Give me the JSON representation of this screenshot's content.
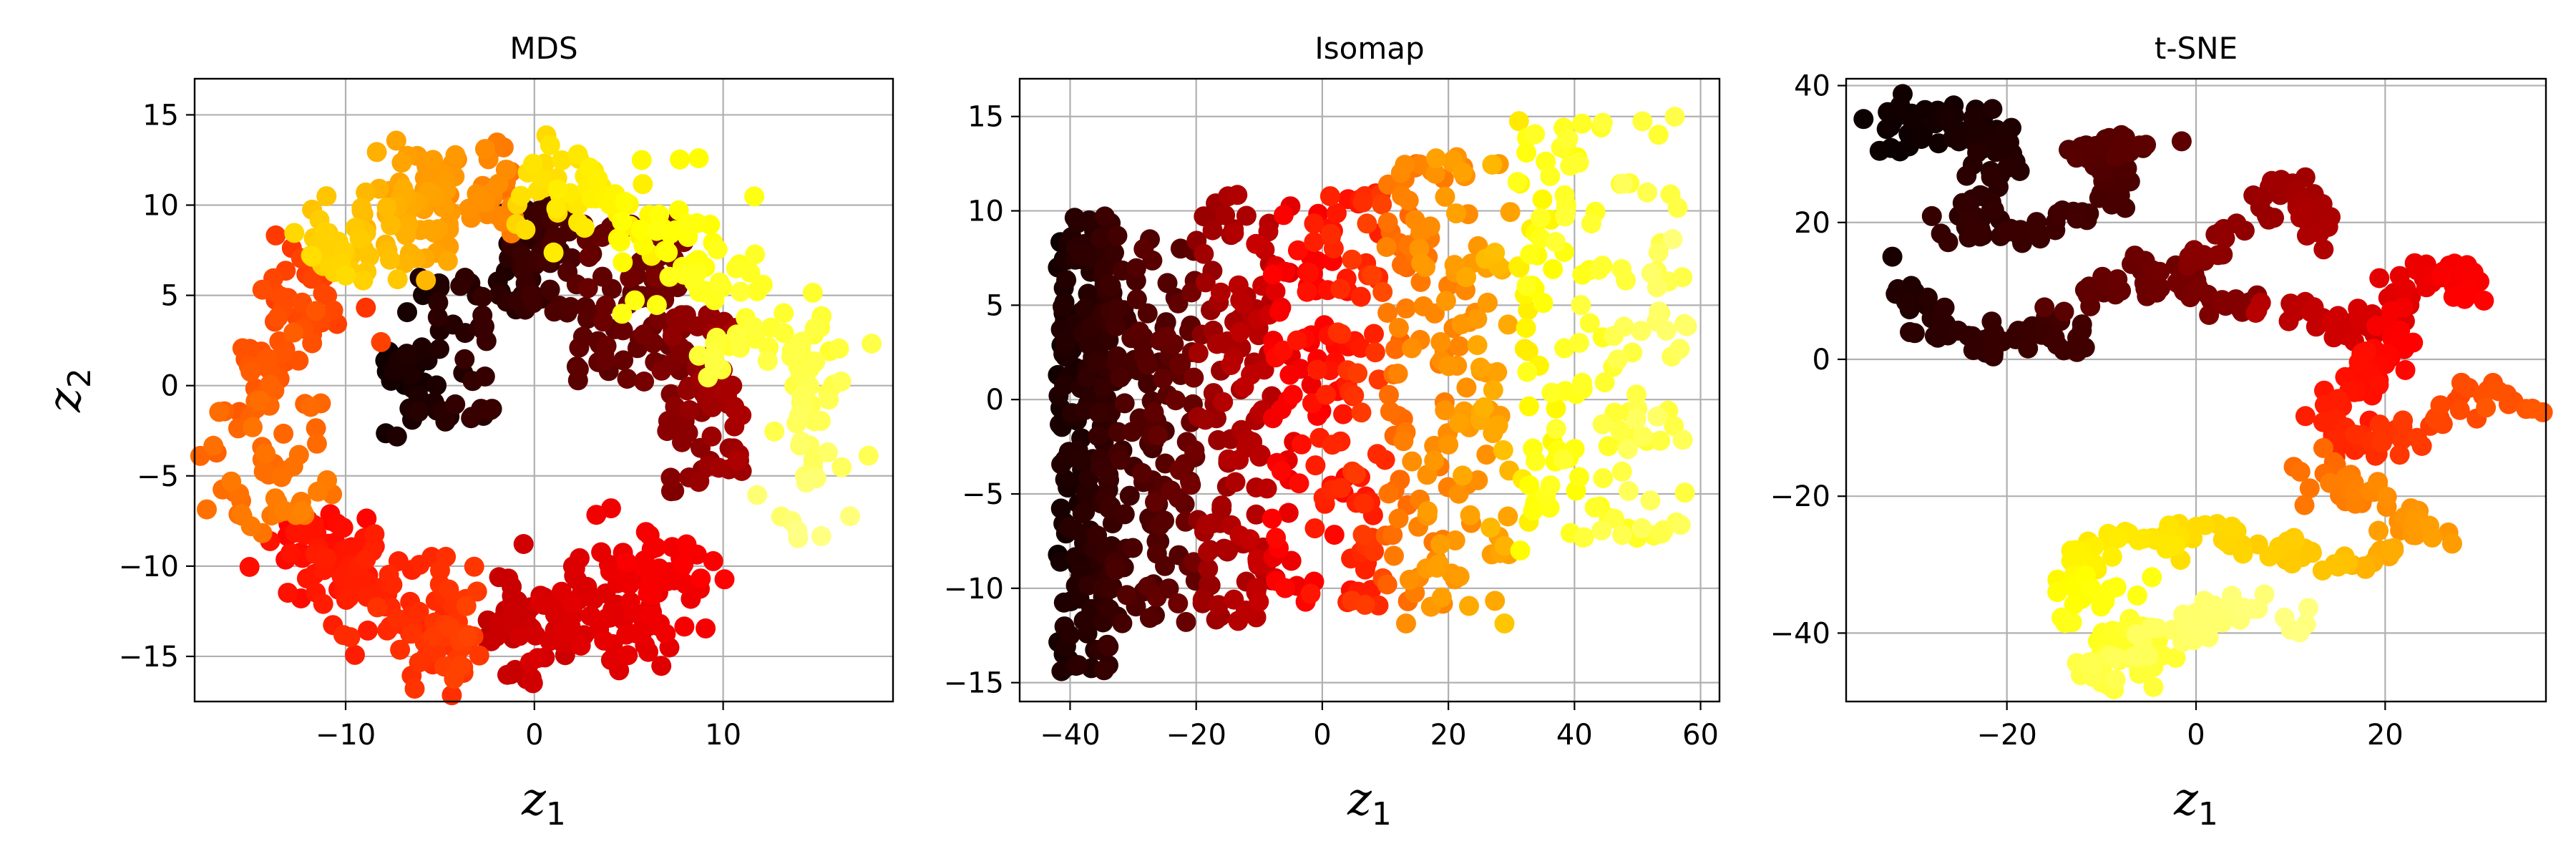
{
  "chart_data": [
    {
      "type": "scatter",
      "title": "MDS",
      "xlabel": "z",
      "xlabel_sub": "1",
      "ylabel": "z",
      "ylabel_sub": "2",
      "xlim": [
        -18,
        19
      ],
      "ylim": [
        -17.5,
        17
      ],
      "xticks": [
        -10,
        0,
        10
      ],
      "yticks": [
        -15,
        -10,
        -5,
        0,
        5,
        10,
        15
      ],
      "grid": true,
      "colormap": "hot",
      "color_range": [
        0,
        1.2
      ],
      "clusters": [
        {
          "kind": "arc",
          "cx": -1,
          "cy": -2,
          "r": 13.3,
          "a0": 140,
          "a1": 90,
          "n": 130,
          "t0": 0.82,
          "t1": 0.66,
          "spread": 1.5
        },
        {
          "kind": "arc",
          "cx": -1,
          "cy": -2,
          "r": 13.3,
          "a0": 205,
          "a1": 140,
          "n": 110,
          "t0": 0.66,
          "t1": 0.55,
          "spread": 1.6
        },
        {
          "kind": "arc",
          "cx": -1,
          "cy": -2,
          "r": 12.5,
          "a0": 262,
          "a1": 205,
          "n": 150,
          "t0": 0.55,
          "t1": 0.45,
          "spread": 1.6
        },
        {
          "kind": "arc",
          "cx": -1,
          "cy": -2,
          "r": 11.5,
          "a0": 325,
          "a1": 262,
          "n": 150,
          "t0": 0.44,
          "t1": 0.33,
          "spread": 1.6
        },
        {
          "kind": "arc",
          "cx": -1,
          "cy": -2,
          "r": 13.5,
          "a0": 90,
          "a1": 10,
          "n": 120,
          "t0": 0.83,
          "t1": 0.98,
          "spread": 1.8
        },
        {
          "kind": "arc",
          "cx": -1,
          "cy": -2,
          "r": 16,
          "a0": 20,
          "a1": -25,
          "n": 50,
          "t0": 0.96,
          "t1": 1.05,
          "spread": 1.3
        },
        {
          "kind": "blob",
          "x": [
            -2,
            2
          ],
          "y": [
            4,
            10
          ],
          "n": 70,
          "t": [
            0.02,
            0.14
          ]
        },
        {
          "kind": "blob",
          "x": [
            -7,
            -2
          ],
          "y": [
            -2,
            6
          ],
          "n": 50,
          "t": [
            0.0,
            0.1
          ]
        },
        {
          "kind": "blob",
          "x": [
            2,
            8
          ],
          "y": [
            0,
            9
          ],
          "n": 80,
          "t": [
            0.12,
            0.22
          ]
        },
        {
          "kind": "blob",
          "x": [
            7,
            11
          ],
          "y": [
            -6,
            4
          ],
          "n": 70,
          "t": [
            0.2,
            0.3
          ]
        },
        {
          "kind": "blob",
          "x": [
            -8,
            -6
          ],
          "y": [
            -3,
            2
          ],
          "n": 15,
          "t": [
            0.0,
            0.06
          ]
        }
      ]
    },
    {
      "type": "scatter",
      "title": "Isomap",
      "xlabel": "z",
      "xlabel_sub": "1",
      "xlim": [
        -48,
        63
      ],
      "ylim": [
        -16,
        17
      ],
      "xticks": [
        -40,
        -20,
        0,
        20,
        40,
        60
      ],
      "yticks": [
        -15,
        -10,
        -5,
        0,
        5,
        10,
        15
      ],
      "grid": true,
      "colormap": "hot",
      "color_range": [
        0,
        1.2
      ],
      "clusters": [
        {
          "kind": "blob",
          "x": [
            -42,
            -33
          ],
          "y": [
            -14.5,
            10
          ],
          "n": 220,
          "t": [
            0.0,
            0.1
          ]
        },
        {
          "kind": "blob",
          "x": [
            -33,
            -20
          ],
          "y": [
            -12,
            9
          ],
          "n": 140,
          "t": [
            0.06,
            0.2
          ]
        },
        {
          "kind": "blob",
          "x": [
            -20,
            -8
          ],
          "y": [
            -12,
            11
          ],
          "n": 130,
          "t": [
            0.22,
            0.36
          ]
        },
        {
          "kind": "blob",
          "x": [
            -8,
            10
          ],
          "y": [
            -11,
            11
          ],
          "n": 160,
          "t": [
            0.36,
            0.58
          ]
        },
        {
          "kind": "blob",
          "x": [
            10,
            30
          ],
          "y": [
            -12,
            13
          ],
          "n": 170,
          "t": [
            0.6,
            0.8
          ]
        },
        {
          "kind": "blob",
          "x": [
            30,
            58
          ],
          "y": [
            -8,
            15
          ],
          "n": 160,
          "t": [
            0.85,
            1.05
          ]
        }
      ]
    },
    {
      "type": "scatter",
      "title": "t-SNE",
      "xlabel": "z",
      "xlabel_sub": "1",
      "xlim": [
        -37,
        37
      ],
      "ylim": [
        -50,
        41
      ],
      "xticks": [
        -20,
        0,
        20
      ],
      "yticks": [
        -40,
        -20,
        0,
        20,
        40
      ],
      "grid": true,
      "colormap": "hot",
      "color_range": [
        0,
        1.2
      ],
      "clusters": [
        {
          "kind": "path",
          "pts": [
            [
              -33,
              32
            ],
            [
              -29,
              36
            ],
            [
              -24,
              34
            ],
            [
              -20,
              32
            ],
            [
              -22,
              24
            ],
            [
              -26,
              18
            ]
          ],
          "n": 90,
          "t": [
            0.0,
            0.08
          ],
          "spread": 1.5
        },
        {
          "kind": "path",
          "pts": [
            [
              -34,
              16
            ],
            [
              -31,
              10
            ],
            [
              -27,
              4
            ],
            [
              -20,
              3
            ],
            [
              -12,
              4
            ]
          ],
          "n": 60,
          "t": [
            0.02,
            0.1
          ],
          "spread": 1.4
        },
        {
          "kind": "path",
          "pts": [
            [
              -20,
              18
            ],
            [
              -15,
              20
            ],
            [
              -10,
              22
            ],
            [
              -8,
              28
            ],
            [
              -13,
              31
            ],
            [
              -5,
              31
            ]
          ],
          "n": 60,
          "t": [
            0.08,
            0.15
          ],
          "spread": 1.3
        },
        {
          "kind": "path",
          "pts": [
            [
              -14,
              8
            ],
            [
              -10,
              10
            ],
            [
              -6,
              13
            ],
            [
              -1,
              11
            ],
            [
              2,
              8
            ],
            [
              6,
              8
            ]
          ],
          "n": 50,
          "t": [
            0.14,
            0.22
          ],
          "spread": 1.2
        },
        {
          "kind": "path",
          "pts": [
            [
              0,
              14
            ],
            [
              3,
              18
            ],
            [
              6,
              21
            ],
            [
              9,
              26
            ],
            [
              12,
              24
            ],
            [
              12,
              16
            ]
          ],
          "n": 50,
          "t": [
            0.22,
            0.3
          ],
          "spread": 1.1
        },
        {
          "kind": "path",
          "pts": [
            [
              6,
              8
            ],
            [
              12,
              6
            ],
            [
              16,
              4
            ],
            [
              21,
              8
            ],
            [
              24,
              14
            ],
            [
              28,
              12
            ],
            [
              29,
              9
            ]
          ],
          "n": 70,
          "t": [
            0.3,
            0.44
          ],
          "spread": 1.3
        },
        {
          "kind": "path",
          "pts": [
            [
              22,
              6
            ],
            [
              20,
              0
            ],
            [
              16,
              -5
            ],
            [
              14,
              -10
            ],
            [
              18,
              -12
            ],
            [
              24,
              -10
            ],
            [
              30,
              -5
            ],
            [
              35,
              -7
            ]
          ],
          "n": 100,
          "t": [
            0.42,
            0.6
          ],
          "spread": 1.4
        },
        {
          "kind": "path",
          "pts": [
            [
              14,
              -14
            ],
            [
              12,
              -19
            ],
            [
              20,
              -20
            ],
            [
              24,
              -24
            ],
            [
              22,
              -28
            ],
            [
              16,
              -30
            ]
          ],
          "n": 60,
          "t": [
            0.62,
            0.76
          ],
          "spread": 1.3
        },
        {
          "kind": "path",
          "pts": [
            [
              16,
              -30
            ],
            [
              8,
              -28
            ],
            [
              2,
              -25
            ],
            [
              -4,
              -26
            ],
            [
              -10,
              -28
            ],
            [
              -14,
              -30
            ],
            [
              -12,
              -36
            ],
            [
              -6,
              -34
            ]
          ],
          "n": 90,
          "t": [
            0.78,
            0.92
          ],
          "spread": 1.3
        },
        {
          "kind": "path",
          "pts": [
            [
              -14,
              -38
            ],
            [
              -10,
              -42
            ],
            [
              -6,
              -40
            ],
            [
              -4,
              -44
            ],
            [
              -13,
              -46
            ],
            [
              4,
              -36
            ],
            [
              10,
              -38
            ]
          ],
          "n": 90,
          "t": [
            0.92,
            1.05
          ],
          "spread": 1.3
        }
      ]
    }
  ]
}
